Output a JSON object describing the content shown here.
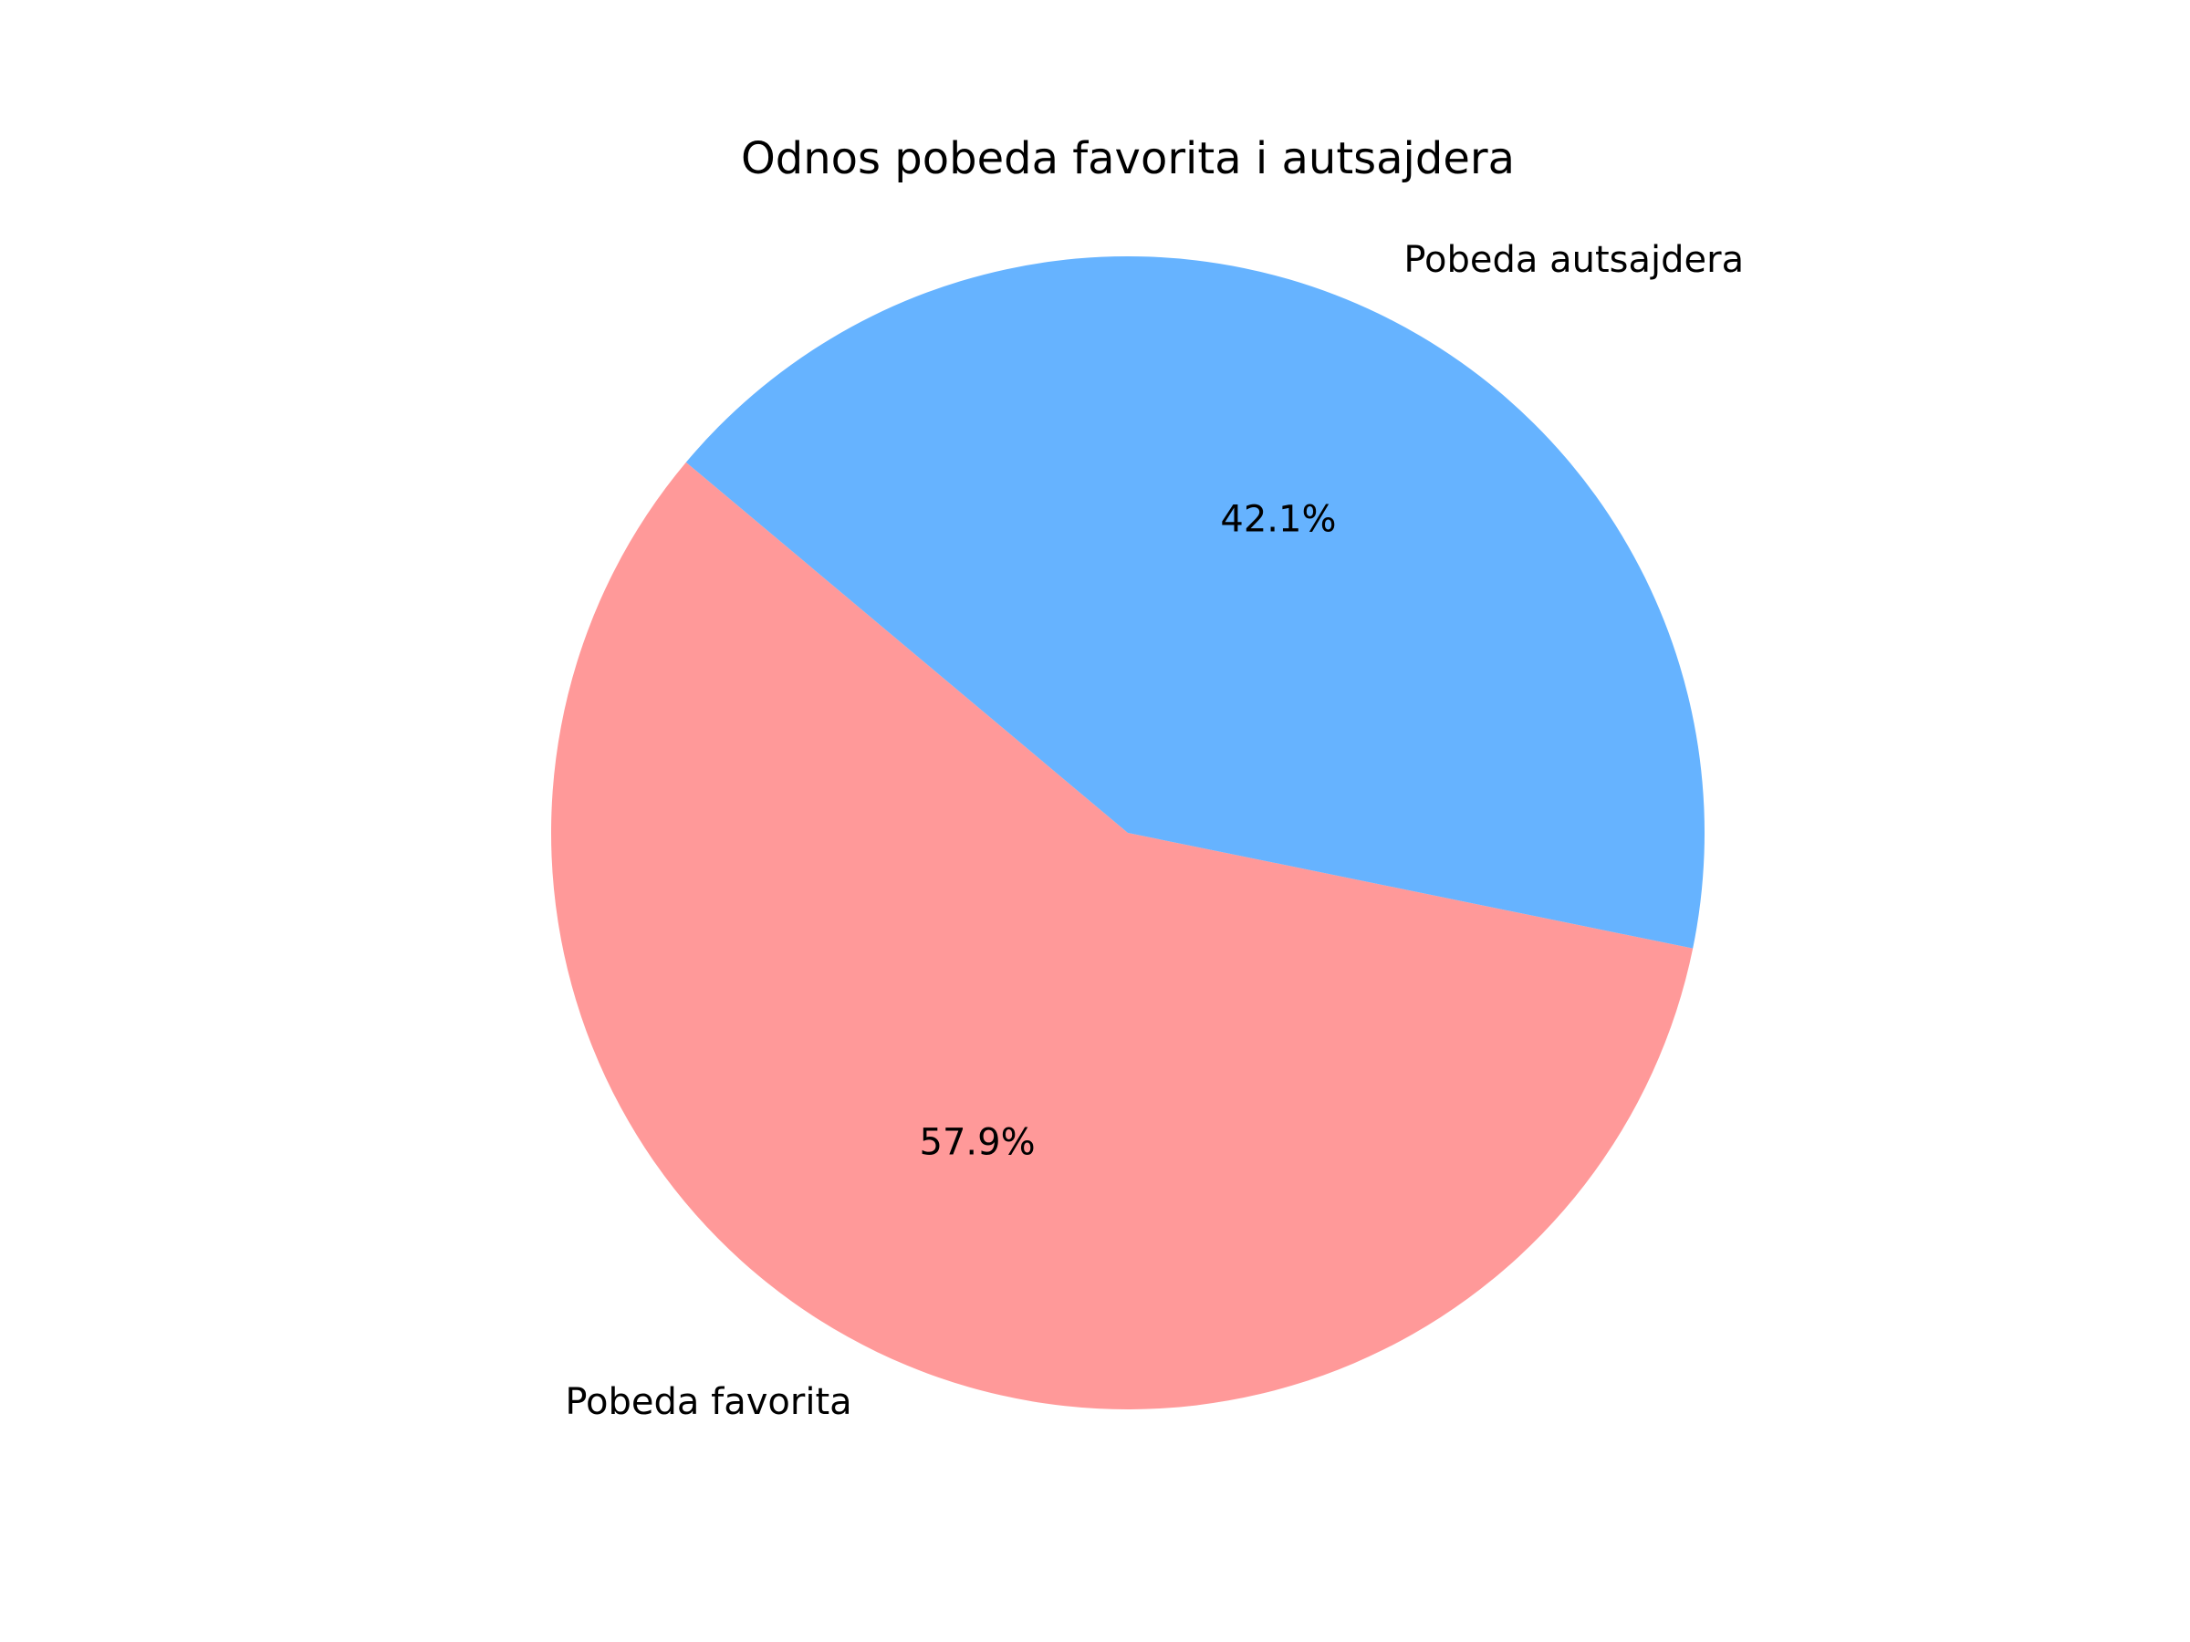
{
  "chart_data": {
    "type": "pie",
    "title": "Odnos pobeda favorita i autsajdera",
    "slices": [
      {
        "label": "Pobeda favorita",
        "value": 57.9,
        "pct_label": "57.9%",
        "color": "#ff9999"
      },
      {
        "label": "Pobeda autsajdera",
        "value": 42.1,
        "pct_label": "42.1%",
        "color": "#66b3ff"
      }
    ],
    "start_angle_deg": 140,
    "direction": "counterclockwise"
  }
}
